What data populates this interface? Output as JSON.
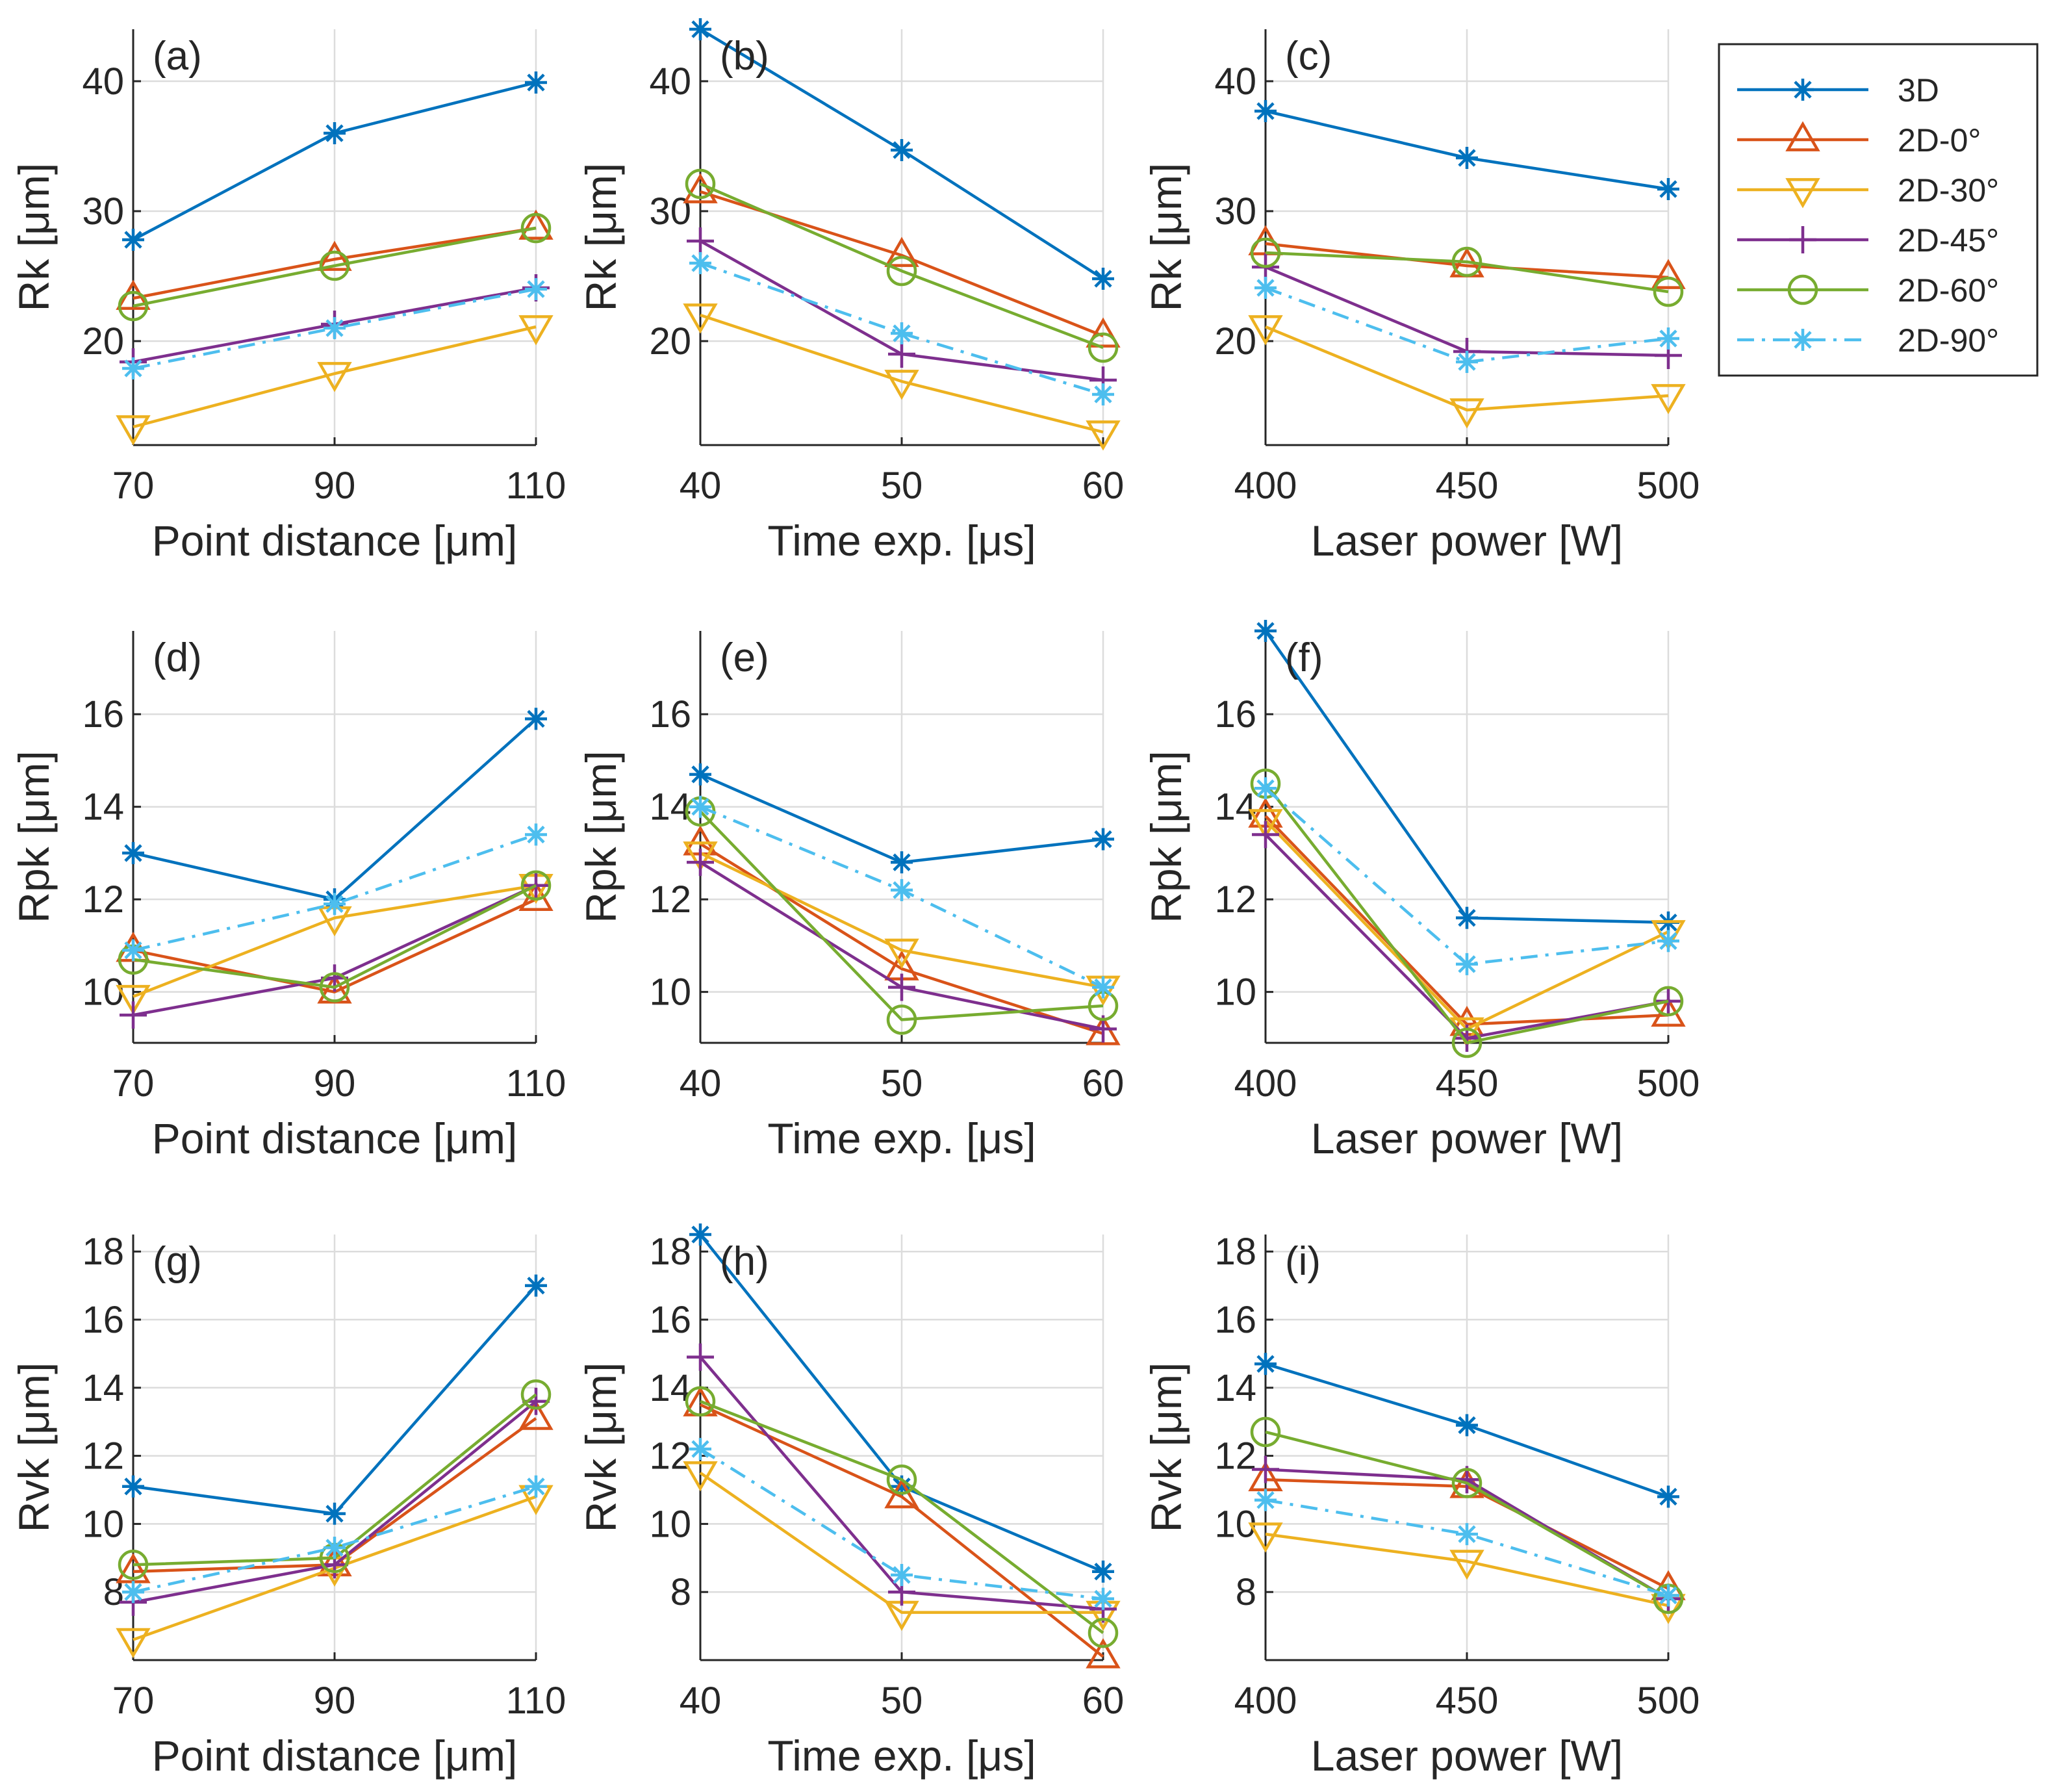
{
  "legend": {
    "entries": [
      {
        "name": "3D",
        "color": "#0072BD",
        "marker": "asterisk",
        "dash": "solid"
      },
      {
        "name": "2D-0°",
        "color": "#D95319",
        "marker": "triangle-up",
        "dash": "solid"
      },
      {
        "name": "2D-30°",
        "color": "#EDB120",
        "marker": "triangle-down",
        "dash": "solid"
      },
      {
        "name": "2D-45°",
        "color": "#7E2F8E",
        "marker": "plus",
        "dash": "solid"
      },
      {
        "name": "2D-60°",
        "color": "#77AC30",
        "marker": "circle",
        "dash": "solid"
      },
      {
        "name": "2D-90°",
        "color": "#4DBEEE",
        "marker": "asterisk",
        "dash": "dashdot"
      }
    ]
  },
  "chart_data": [
    {
      "panel": "(a)",
      "type": "line",
      "xlabel": "Point distance [μm]",
      "ylabel": "Rk [μm]",
      "x": [
        70,
        90,
        110
      ],
      "xticks": [
        "70",
        "90",
        "110"
      ],
      "ylim": [
        12,
        44
      ],
      "yticks": [
        "20",
        "30",
        "40"
      ],
      "series": [
        {
          "name": "3D",
          "values": [
            27.8,
            36.0,
            39.9
          ]
        },
        {
          "name": "2D-0°",
          "values": [
            23.3,
            26.3,
            28.7
          ]
        },
        {
          "name": "2D-30°",
          "values": [
            13.4,
            17.5,
            21.1
          ]
        },
        {
          "name": "2D-45°",
          "values": [
            18.4,
            21.3,
            24.1
          ]
        },
        {
          "name": "2D-60°",
          "values": [
            22.7,
            25.8,
            28.7
          ]
        },
        {
          "name": "2D-90°",
          "values": [
            17.9,
            21.0,
            24.0
          ]
        }
      ]
    },
    {
      "panel": "(b)",
      "type": "line",
      "xlabel": "Time exp. [μs]",
      "ylabel": "Rk [μm]",
      "x": [
        40,
        50,
        60
      ],
      "xticks": [
        "40",
        "50",
        "60"
      ],
      "ylim": [
        12,
        44
      ],
      "yticks": [
        "20",
        "30",
        "40"
      ],
      "series": [
        {
          "name": "3D",
          "values": [
            44.0,
            34.7,
            24.8
          ]
        },
        {
          "name": "2D-0°",
          "values": [
            31.5,
            26.6,
            20.4
          ]
        },
        {
          "name": "2D-30°",
          "values": [
            22.0,
            16.9,
            13.0
          ]
        },
        {
          "name": "2D-45°",
          "values": [
            27.7,
            19.0,
            17.0
          ]
        },
        {
          "name": "2D-60°",
          "values": [
            32.1,
            25.4,
            19.5
          ]
        },
        {
          "name": "2D-90°",
          "values": [
            26.0,
            20.6,
            15.9
          ]
        }
      ]
    },
    {
      "panel": "(c)",
      "type": "line",
      "xlabel": "Laser power [W]",
      "ylabel": "Rk [μm]",
      "x": [
        400,
        450,
        500
      ],
      "xticks": [
        "400",
        "450",
        "500"
      ],
      "ylim": [
        12,
        44
      ],
      "yticks": [
        "20",
        "30",
        "40"
      ],
      "series": [
        {
          "name": "3D",
          "values": [
            37.7,
            34.1,
            31.7
          ]
        },
        {
          "name": "2D-0°",
          "values": [
            27.5,
            25.8,
            24.9
          ]
        },
        {
          "name": "2D-30°",
          "values": [
            21.1,
            14.7,
            15.8
          ]
        },
        {
          "name": "2D-45°",
          "values": [
            25.7,
            19.2,
            18.9
          ]
        },
        {
          "name": "2D-60°",
          "values": [
            26.8,
            26.1,
            23.8
          ]
        },
        {
          "name": "2D-90°",
          "values": [
            24.1,
            18.4,
            20.2
          ]
        }
      ]
    },
    {
      "panel": "(d)",
      "type": "line",
      "xlabel": "Point distance [μm]",
      "ylabel": "Rpk [μm]",
      "x": [
        70,
        90,
        110
      ],
      "xticks": [
        "70",
        "90",
        "110"
      ],
      "ylim": [
        8.9,
        17.8
      ],
      "yticks": [
        "10",
        "12",
        "14",
        "16"
      ],
      "series": [
        {
          "name": "3D",
          "values": [
            13.0,
            12.0,
            15.9
          ]
        },
        {
          "name": "2D-0°",
          "values": [
            10.9,
            10.0,
            12.0
          ]
        },
        {
          "name": "2D-30°",
          "values": [
            9.9,
            11.6,
            12.3
          ]
        },
        {
          "name": "2D-45°",
          "values": [
            9.5,
            10.3,
            12.3
          ]
        },
        {
          "name": "2D-60°",
          "values": [
            10.7,
            10.1,
            12.3
          ]
        },
        {
          "name": "2D-90°",
          "values": [
            10.9,
            11.9,
            13.4
          ]
        }
      ]
    },
    {
      "panel": "(e)",
      "type": "line",
      "xlabel": "Time exp. [μs]",
      "ylabel": "Rpk [μm]",
      "x": [
        40,
        50,
        60
      ],
      "xticks": [
        "40",
        "50",
        "60"
      ],
      "ylim": [
        8.9,
        17.8
      ],
      "yticks": [
        "10",
        "12",
        "14",
        "16"
      ],
      "series": [
        {
          "name": "3D",
          "values": [
            14.7,
            12.8,
            13.3
          ]
        },
        {
          "name": "2D-0°",
          "values": [
            13.2,
            10.5,
            9.1
          ]
        },
        {
          "name": "2D-30°",
          "values": [
            13.0,
            10.9,
            10.1
          ]
        },
        {
          "name": "2D-45°",
          "values": [
            12.8,
            10.1,
            9.2
          ]
        },
        {
          "name": "2D-60°",
          "values": [
            13.9,
            9.4,
            9.7
          ]
        },
        {
          "name": "2D-90°",
          "values": [
            14.0,
            12.2,
            10.1
          ]
        }
      ]
    },
    {
      "panel": "(f)",
      "type": "line",
      "xlabel": "Laser power [W]",
      "ylabel": "Rpk [μm]",
      "x": [
        400,
        450,
        500
      ],
      "xticks": [
        "400",
        "450",
        "500"
      ],
      "ylim": [
        8.9,
        17.8
      ],
      "yticks": [
        "10",
        "12",
        "14",
        "16"
      ],
      "series": [
        {
          "name": "3D",
          "values": [
            17.8,
            11.6,
            11.5
          ]
        },
        {
          "name": "2D-0°",
          "values": [
            13.8,
            9.3,
            9.5
          ]
        },
        {
          "name": "2D-30°",
          "values": [
            13.7,
            9.2,
            11.3
          ]
        },
        {
          "name": "2D-45°",
          "values": [
            13.4,
            9.0,
            9.8
          ]
        },
        {
          "name": "2D-60°",
          "values": [
            14.5,
            8.9,
            9.8
          ]
        },
        {
          "name": "2D-90°",
          "values": [
            14.4,
            10.6,
            11.1
          ]
        }
      ]
    },
    {
      "panel": "(g)",
      "type": "line",
      "xlabel": "Point distance [μm]",
      "ylabel": "Rvk [μm]",
      "x": [
        70,
        90,
        110
      ],
      "xticks": [
        "70",
        "90",
        "110"
      ],
      "ylim": [
        6,
        18.5
      ],
      "yticks": [
        "8",
        "10",
        "12",
        "14",
        "16",
        "18"
      ],
      "series": [
        {
          "name": "3D",
          "values": [
            11.1,
            10.3,
            17.0
          ]
        },
        {
          "name": "2D-0°",
          "values": [
            8.6,
            8.8,
            13.1
          ]
        },
        {
          "name": "2D-30°",
          "values": [
            6.6,
            8.7,
            10.8
          ]
        },
        {
          "name": "2D-45°",
          "values": [
            7.7,
            8.8,
            13.6
          ]
        },
        {
          "name": "2D-60°",
          "values": [
            8.8,
            9.0,
            13.8
          ]
        },
        {
          "name": "2D-90°",
          "values": [
            8.0,
            9.3,
            11.1
          ]
        }
      ]
    },
    {
      "panel": "(h)",
      "type": "line",
      "xlabel": "Time exp. [μs]",
      "ylabel": "Rvk [μm]",
      "x": [
        40,
        50,
        60
      ],
      "xticks": [
        "40",
        "50",
        "60"
      ],
      "ylim": [
        6,
        18.5
      ],
      "yticks": [
        "8",
        "10",
        "12",
        "14",
        "16",
        "18"
      ],
      "series": [
        {
          "name": "3D",
          "values": [
            18.5,
            11.1,
            8.6
          ]
        },
        {
          "name": "2D-0°",
          "values": [
            13.5,
            10.8,
            6.1
          ]
        },
        {
          "name": "2D-30°",
          "values": [
            11.5,
            7.4,
            7.4
          ]
        },
        {
          "name": "2D-45°",
          "values": [
            14.9,
            8.0,
            7.5
          ]
        },
        {
          "name": "2D-60°",
          "values": [
            13.6,
            11.3,
            6.8
          ]
        },
        {
          "name": "2D-90°",
          "values": [
            12.2,
            8.5,
            7.8
          ]
        }
      ]
    },
    {
      "panel": "(i)",
      "type": "line",
      "xlabel": "Laser power [W]",
      "ylabel": "Rvk [μm]",
      "x": [
        400,
        450,
        500
      ],
      "xticks": [
        "400",
        "450",
        "500"
      ],
      "ylim": [
        6,
        18.5
      ],
      "yticks": [
        "8",
        "10",
        "12",
        "14",
        "16",
        "18"
      ],
      "series": [
        {
          "name": "3D",
          "values": [
            14.7,
            12.9,
            10.8
          ]
        },
        {
          "name": "2D-0°",
          "values": [
            11.3,
            11.1,
            8.1
          ]
        },
        {
          "name": "2D-30°",
          "values": [
            9.7,
            8.9,
            7.6
          ]
        },
        {
          "name": "2D-45°",
          "values": [
            11.6,
            11.3,
            7.8
          ]
        },
        {
          "name": "2D-60°",
          "values": [
            12.7,
            11.2,
            7.8
          ]
        },
        {
          "name": "2D-90°",
          "values": [
            10.7,
            9.7,
            7.9
          ]
        }
      ]
    }
  ]
}
